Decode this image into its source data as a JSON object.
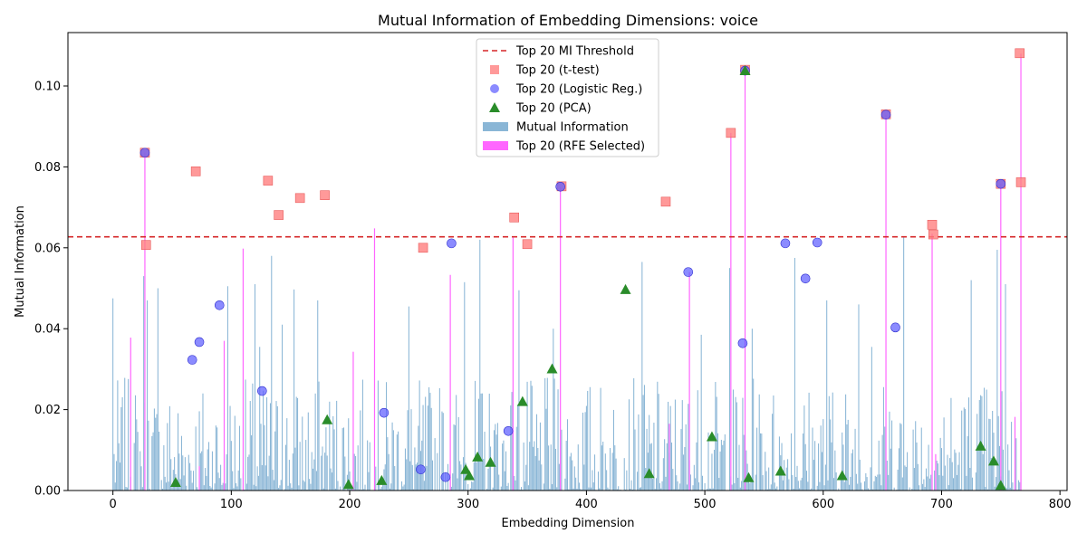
{
  "chart_data": {
    "type": "bar",
    "title": "Mutual Information of Embedding Dimensions: voice",
    "xlabel": "Embedding Dimension",
    "ylabel": "Mutual Information",
    "xlim": [
      -38,
      806
    ],
    "ylim": [
      0,
      0.1132
    ],
    "xticks": [
      0,
      100,
      200,
      300,
      400,
      500,
      600,
      700,
      800
    ],
    "yticks": [
      0.0,
      0.02,
      0.04,
      0.06,
      0.08,
      0.1
    ],
    "ytick_labels": [
      "0.00",
      "0.02",
      "0.04",
      "0.06",
      "0.08",
      "0.10"
    ],
    "grid": false,
    "legend_position": "top-center",
    "threshold": {
      "name": "Top 20 MI Threshold",
      "value": 0.0627,
      "color": "#d62728"
    },
    "colors": {
      "mi_bar": "#8ab6d6",
      "rfe_bar": "#ff66ff",
      "ttest": "#ff7f7f",
      "logistic": "#5a5aff",
      "pca": "#2a8c2a"
    },
    "legend": [
      {
        "label": "Top 20 MI Threshold",
        "kind": "dashed-line"
      },
      {
        "label": "Top 20 (t-test)",
        "kind": "square"
      },
      {
        "label": "Top 20 (Logistic Reg.)",
        "kind": "circle"
      },
      {
        "label": "Top 20 (PCA)",
        "kind": "triangle"
      },
      {
        "label": "Mutual Information",
        "kind": "patch-blue"
      },
      {
        "label": "Top 20 (RFE Selected)",
        "kind": "patch-magenta"
      }
    ],
    "highlight_bars": [
      {
        "x": 0,
        "y": 0.0475
      },
      {
        "x": 26,
        "y": 0.053
      },
      {
        "x": 29,
        "y": 0.047
      },
      {
        "x": 38,
        "y": 0.05
      },
      {
        "x": 97,
        "y": 0.0505
      },
      {
        "x": 120,
        "y": 0.051
      },
      {
        "x": 124,
        "y": 0.0355
      },
      {
        "x": 134,
        "y": 0.058
      },
      {
        "x": 143,
        "y": 0.041
      },
      {
        "x": 153,
        "y": 0.0497
      },
      {
        "x": 173,
        "y": 0.047
      },
      {
        "x": 250,
        "y": 0.0455
      },
      {
        "x": 297,
        "y": 0.0515
      },
      {
        "x": 310,
        "y": 0.062
      },
      {
        "x": 343,
        "y": 0.0495
      },
      {
        "x": 372,
        "y": 0.04
      },
      {
        "x": 447,
        "y": 0.0565
      },
      {
        "x": 497,
        "y": 0.0385
      },
      {
        "x": 521,
        "y": 0.055
      },
      {
        "x": 540,
        "y": 0.04
      },
      {
        "x": 576,
        "y": 0.0575
      },
      {
        "x": 603,
        "y": 0.047
      },
      {
        "x": 630,
        "y": 0.046
      },
      {
        "x": 641,
        "y": 0.0355
      },
      {
        "x": 668,
        "y": 0.0628
      },
      {
        "x": 725,
        "y": 0.052
      },
      {
        "x": 747,
        "y": 0.0595
      },
      {
        "x": 754,
        "y": 0.051
      }
    ],
    "rfe_bars": [
      {
        "x": 15,
        "y": 0.0378
      },
      {
        "x": 27,
        "y": 0.0835
      },
      {
        "x": 73,
        "y": 0.006
      },
      {
        "x": 94,
        "y": 0.037
      },
      {
        "x": 110,
        "y": 0.0598
      },
      {
        "x": 203,
        "y": 0.0343
      },
      {
        "x": 221,
        "y": 0.0648
      },
      {
        "x": 285,
        "y": 0.0533
      },
      {
        "x": 338,
        "y": 0.0625
      },
      {
        "x": 378,
        "y": 0.075
      },
      {
        "x": 470,
        "y": 0.0165
      },
      {
        "x": 487,
        "y": 0.054
      },
      {
        "x": 522,
        "y": 0.0884
      },
      {
        "x": 534,
        "y": 0.1038
      },
      {
        "x": 653,
        "y": 0.0928
      },
      {
        "x": 692,
        "y": 0.0635
      },
      {
        "x": 695,
        "y": 0.009
      },
      {
        "x": 750,
        "y": 0.0758
      },
      {
        "x": 762,
        "y": 0.0182
      },
      {
        "x": 767,
        "y": 0.108
      }
    ],
    "ttest_points": [
      {
        "x": 27,
        "y": 0.0835
      },
      {
        "x": 28,
        "y": 0.0607
      },
      {
        "x": 70,
        "y": 0.0789
      },
      {
        "x": 131,
        "y": 0.0766
      },
      {
        "x": 140,
        "y": 0.0681
      },
      {
        "x": 158,
        "y": 0.0723
      },
      {
        "x": 179,
        "y": 0.073
      },
      {
        "x": 262,
        "y": 0.06
      },
      {
        "x": 339,
        "y": 0.0675
      },
      {
        "x": 350,
        "y": 0.0609
      },
      {
        "x": 379,
        "y": 0.0752
      },
      {
        "x": 467,
        "y": 0.0714
      },
      {
        "x": 522,
        "y": 0.0884
      },
      {
        "x": 534,
        "y": 0.104
      },
      {
        "x": 653,
        "y": 0.093
      },
      {
        "x": 692,
        "y": 0.0657
      },
      {
        "x": 693,
        "y": 0.0633
      },
      {
        "x": 750,
        "y": 0.0758
      },
      {
        "x": 766,
        "y": 0.1081
      },
      {
        "x": 767,
        "y": 0.0762
      }
    ],
    "logistic_points": [
      {
        "x": 27,
        "y": 0.0835
      },
      {
        "x": 67,
        "y": 0.0323
      },
      {
        "x": 73,
        "y": 0.0367
      },
      {
        "x": 90,
        "y": 0.0458
      },
      {
        "x": 126,
        "y": 0.0246
      },
      {
        "x": 229,
        "y": 0.0192
      },
      {
        "x": 260,
        "y": 0.0052
      },
      {
        "x": 281,
        "y": 0.0033
      },
      {
        "x": 286,
        "y": 0.0611
      },
      {
        "x": 334,
        "y": 0.0147
      },
      {
        "x": 378,
        "y": 0.0751
      },
      {
        "x": 486,
        "y": 0.054
      },
      {
        "x": 532,
        "y": 0.0364
      },
      {
        "x": 534,
        "y": 0.1038
      },
      {
        "x": 568,
        "y": 0.0611
      },
      {
        "x": 585,
        "y": 0.0524
      },
      {
        "x": 595,
        "y": 0.0613
      },
      {
        "x": 653,
        "y": 0.0929
      },
      {
        "x": 661,
        "y": 0.0403
      },
      {
        "x": 750,
        "y": 0.0758
      }
    ],
    "pca_points": [
      {
        "x": 53,
        "y": 0.002
      },
      {
        "x": 181,
        "y": 0.0175
      },
      {
        "x": 199,
        "y": 0.0015
      },
      {
        "x": 227,
        "y": 0.0025
      },
      {
        "x": 298,
        "y": 0.0052
      },
      {
        "x": 301,
        "y": 0.0037
      },
      {
        "x": 308,
        "y": 0.0083
      },
      {
        "x": 319,
        "y": 0.007
      },
      {
        "x": 346,
        "y": 0.022
      },
      {
        "x": 371,
        "y": 0.0301
      },
      {
        "x": 433,
        "y": 0.0497
      },
      {
        "x": 453,
        "y": 0.0042
      },
      {
        "x": 506,
        "y": 0.0133
      },
      {
        "x": 534,
        "y": 0.1038
      },
      {
        "x": 537,
        "y": 0.0032
      },
      {
        "x": 564,
        "y": 0.0048
      },
      {
        "x": 616,
        "y": 0.0037
      },
      {
        "x": 733,
        "y": 0.011
      },
      {
        "x": 744,
        "y": 0.0073
      },
      {
        "x": 750,
        "y": 0.0013
      }
    ]
  }
}
